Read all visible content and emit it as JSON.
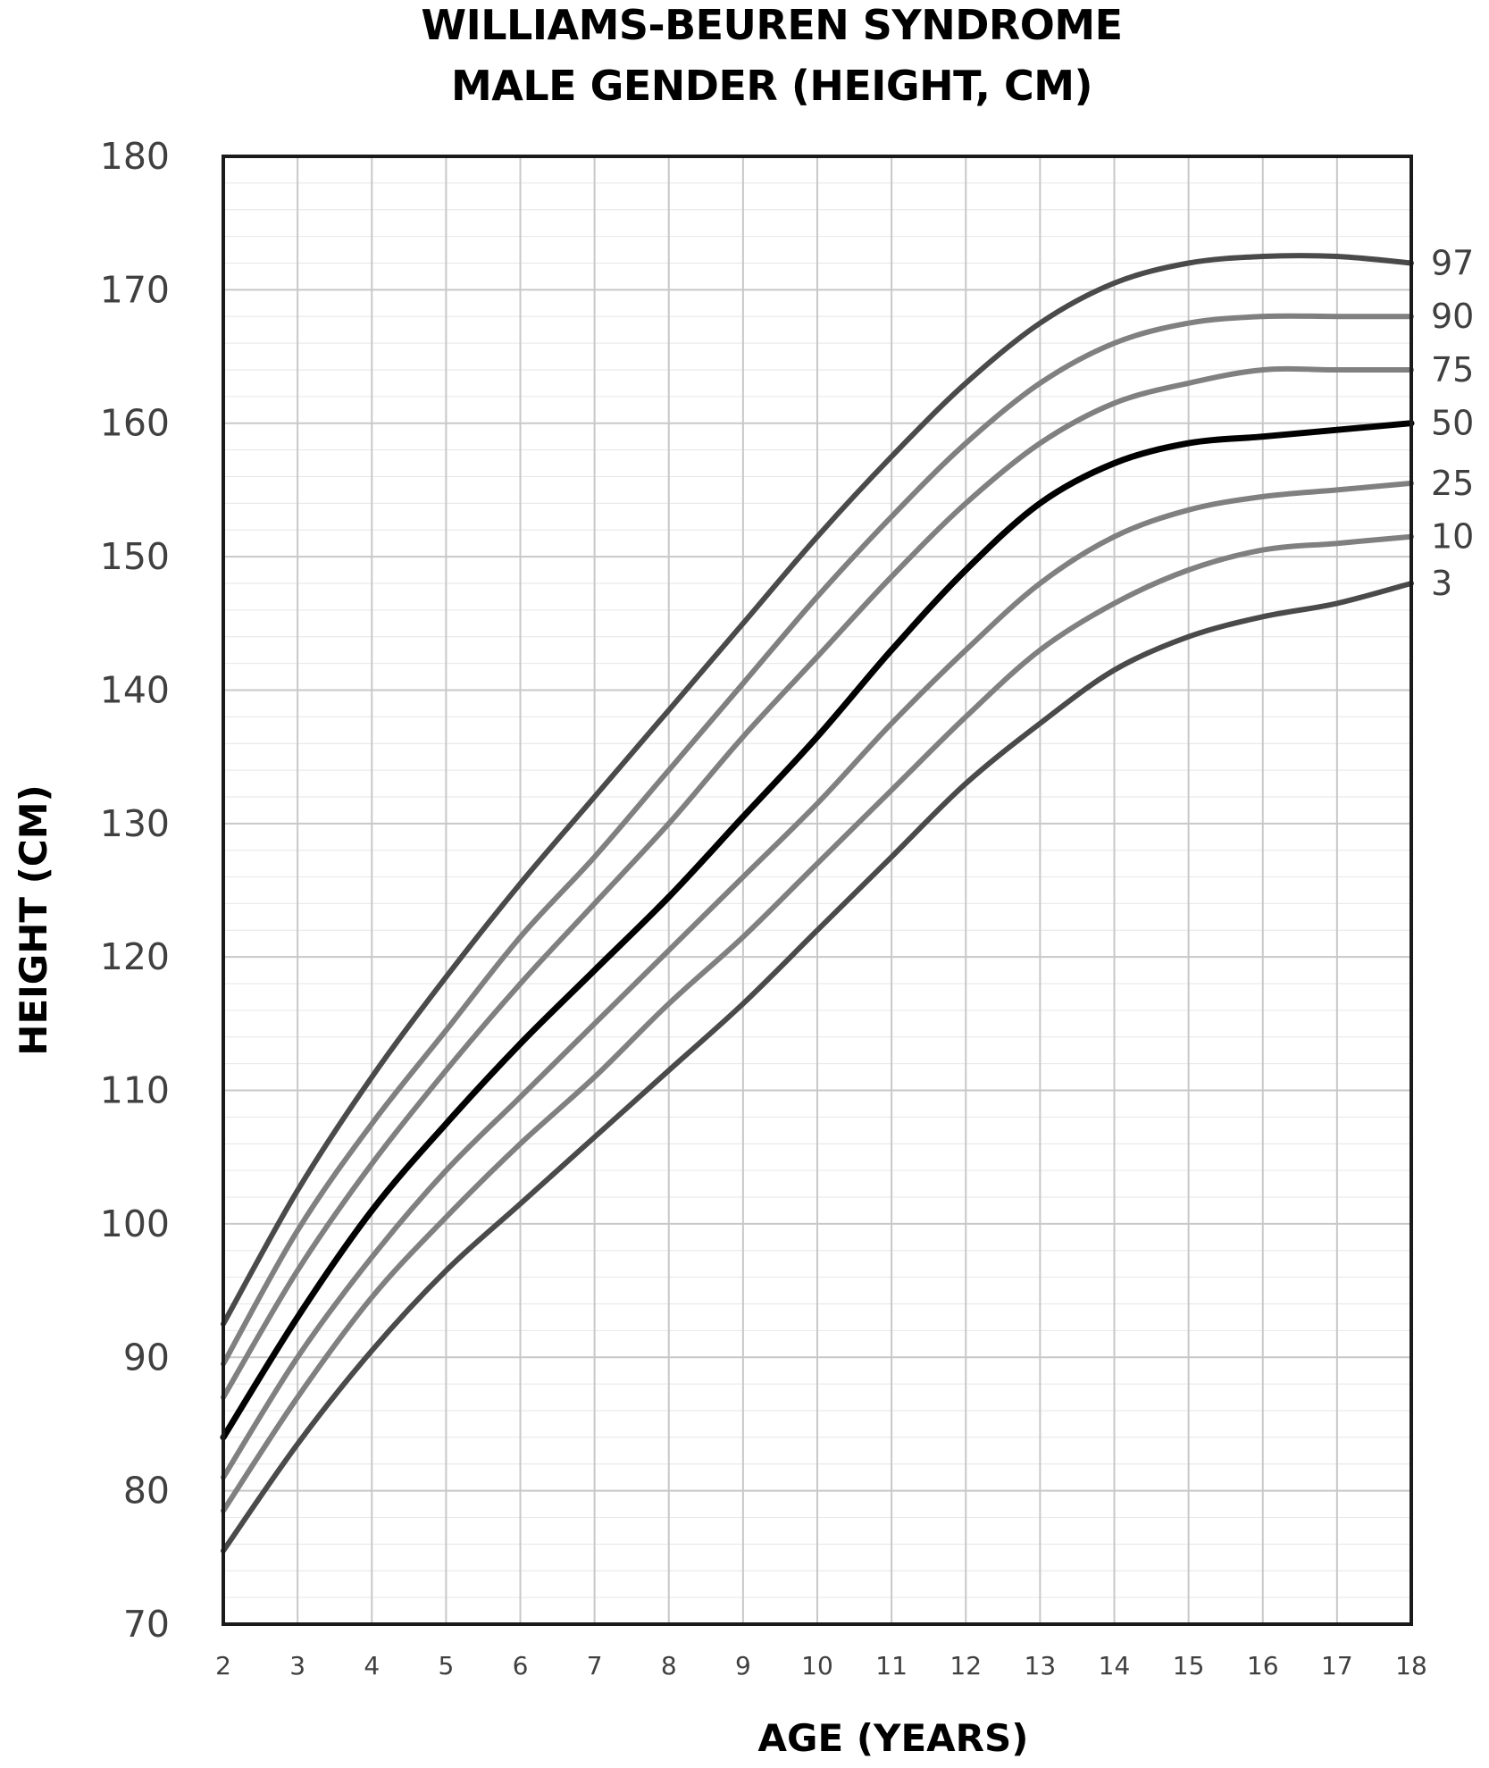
{
  "chart_data": {
    "type": "line",
    "title": "WILLIAMS-BEUREN SYNDROME",
    "subtitle": "MALE GENDER (HEIGHT, CM)",
    "xlabel": "AGE (YEARS)",
    "ylabel": "HEIGHT (CM)",
    "xlim": [
      2,
      18
    ],
    "ylim": [
      70,
      180
    ],
    "x_ticks": [
      2,
      3,
      4,
      5,
      6,
      7,
      8,
      9,
      10,
      11,
      12,
      13,
      14,
      15,
      16,
      17,
      18
    ],
    "y_ticks": [
      70,
      80,
      90,
      100,
      110,
      120,
      130,
      140,
      150,
      160,
      170,
      180
    ],
    "grid": true,
    "legend": "percentile labels at right end of curves",
    "x": [
      2,
      3,
      4,
      5,
      6,
      7,
      8,
      9,
      10,
      11,
      12,
      13,
      14,
      15,
      16,
      17,
      18
    ],
    "series": [
      {
        "name": "97",
        "color": "#4a4a4a",
        "values": [
          92.5,
          102.5,
          111,
          118.5,
          125.5,
          132,
          138.5,
          145,
          151.5,
          157.5,
          163,
          167.5,
          170.5,
          172,
          172.5,
          172.5,
          172
        ]
      },
      {
        "name": "90",
        "color": "#808080",
        "values": [
          89.5,
          99.5,
          107.5,
          114.5,
          121.5,
          127.5,
          134,
          140.5,
          147,
          153,
          158.5,
          163,
          166,
          167.5,
          168,
          168,
          168
        ]
      },
      {
        "name": "75",
        "color": "#808080",
        "values": [
          87,
          96.5,
          104.5,
          111.5,
          118,
          124,
          130,
          136.5,
          142.5,
          148.5,
          154,
          158.5,
          161.5,
          163,
          164,
          164,
          164
        ]
      },
      {
        "name": "50",
        "color": "#000000",
        "values": [
          84,
          93,
          101,
          107.5,
          113.5,
          119,
          124.5,
          130.5,
          136.5,
          143,
          149,
          154,
          157,
          158.5,
          159,
          159.5,
          160
        ]
      },
      {
        "name": "25",
        "color": "#808080",
        "values": [
          81,
          90,
          97.5,
          104,
          109.5,
          115,
          120.5,
          126,
          131.5,
          137.5,
          143,
          148,
          151.5,
          153.5,
          154.5,
          155,
          155.5
        ]
      },
      {
        "name": "10",
        "color": "#808080",
        "values": [
          78.5,
          87,
          94.5,
          100.5,
          106,
          111,
          116.5,
          121.5,
          127,
          132.5,
          138,
          143,
          146.5,
          149,
          150.5,
          151,
          151.5
        ]
      },
      {
        "name": "3",
        "color": "#4a4a4a",
        "values": [
          75.5,
          83.5,
          90.5,
          96.5,
          101.5,
          106.5,
          111.5,
          116.5,
          122,
          127.5,
          133,
          137.5,
          141.5,
          144,
          145.5,
          146.5,
          148
        ]
      }
    ]
  }
}
